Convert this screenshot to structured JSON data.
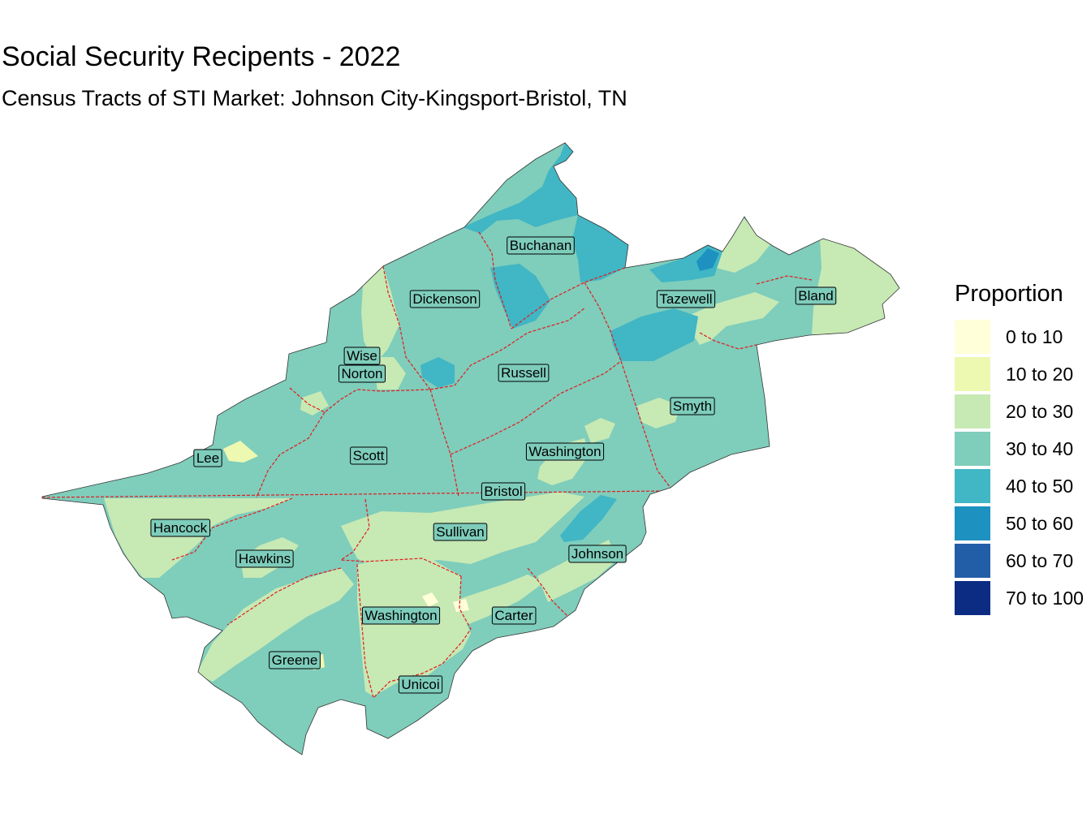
{
  "title": "Social Security Recipents - 2022",
  "subtitle": "Census Tracts of STI Market: Johnson City-Kingsport-Bristol, TN",
  "legend": {
    "title": "Proportion",
    "items": [
      {
        "label": "0 to 10",
        "color": "#ffffd9"
      },
      {
        "label": "10 to 20",
        "color": "#edf8b1"
      },
      {
        "label": "20 to 30",
        "color": "#c7e9b4"
      },
      {
        "label": "30 to 40",
        "color": "#7fcdbb"
      },
      {
        "label": "40 to 50",
        "color": "#41b6c4"
      },
      {
        "label": "50 to 60",
        "color": "#1d91c0"
      },
      {
        "label": "60 to 70",
        "color": "#225ea8"
      },
      {
        "label": "70 to 100",
        "color": "#0c2c84"
      }
    ]
  },
  "county_labels": [
    {
      "name": "Buchanan"
    },
    {
      "name": "Dickenson"
    },
    {
      "name": "Tazewell"
    },
    {
      "name": "Bland"
    },
    {
      "name": "Wise"
    },
    {
      "name": "Norton"
    },
    {
      "name": "Russell"
    },
    {
      "name": "Smyth"
    },
    {
      "name": "Lee"
    },
    {
      "name": "Scott"
    },
    {
      "name": "Washington"
    },
    {
      "name": "Bristol"
    },
    {
      "name": "Hancock"
    },
    {
      "name": "Sullivan"
    },
    {
      "name": "Hawkins"
    },
    {
      "name": "Johnson"
    },
    {
      "name": "Washington"
    },
    {
      "name": "Carter"
    },
    {
      "name": "Greene"
    },
    {
      "name": "Unicoi"
    }
  ]
}
